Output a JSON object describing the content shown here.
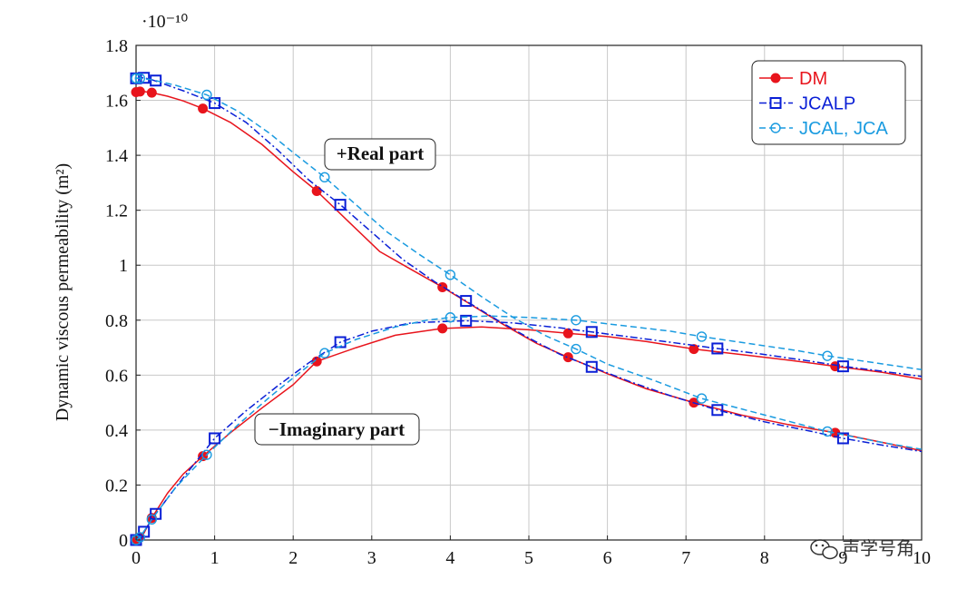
{
  "chart_data": {
    "type": "line",
    "xlim": [
      0,
      10
    ],
    "ylim": [
      0,
      1.8
    ],
    "x_ticks": [
      "0",
      "1",
      "2",
      "3",
      "4",
      "5",
      "6",
      "7",
      "8",
      "9",
      "10"
    ],
    "y_ticks": [
      "0",
      "0.2",
      "0.4",
      "0.6",
      "0.8",
      "1",
      "1.2",
      "1.4",
      "1.6",
      "1.8"
    ],
    "ylabel": "Dynamic viscous permeability (m²)",
    "y_multiplier": "·10⁻¹⁰",
    "grid": true,
    "legend_position": "top-right",
    "annotations": [
      "+Real part",
      "−Imaginary part"
    ],
    "series": [
      {
        "name": "DM",
        "color": "#e8141c",
        "line": "solid",
        "marker": "filled-circle",
        "real": {
          "x": [
            0,
            0.1,
            0.2,
            0.4,
            0.6,
            0.85,
            1.2,
            1.6,
            2.0,
            2.3,
            2.7,
            3.1,
            3.5,
            3.9,
            4.3,
            4.7,
            5.1,
            5.5,
            6.0,
            6.5,
            7.1,
            7.7,
            8.3,
            8.9,
            9.5,
            10
          ],
          "y": [
            1.63,
            1.632,
            1.628,
            1.615,
            1.598,
            1.57,
            1.52,
            1.44,
            1.34,
            1.27,
            1.16,
            1.05,
            0.985,
            0.92,
            0.85,
            0.78,
            0.715,
            0.665,
            0.605,
            0.55,
            0.5,
            0.455,
            0.42,
            0.39,
            0.355,
            0.325
          ],
          "markers_x": [
            0,
            0.05,
            0.2,
            0.85,
            2.3,
            3.9,
            5.5,
            7.1,
            8.9
          ],
          "markers_y": [
            1.63,
            1.632,
            1.628,
            1.57,
            1.27,
            0.92,
            0.665,
            0.5,
            0.39
          ]
        },
        "imag": {
          "x": [
            0,
            0.05,
            0.1,
            0.2,
            0.4,
            0.6,
            0.85,
            1.2,
            1.6,
            2.0,
            2.3,
            2.8,
            3.3,
            3.9,
            4.4,
            5.0,
            5.5,
            6.0,
            6.5,
            7.1,
            7.7,
            8.3,
            8.9,
            9.5,
            10
          ],
          "y": [
            0,
            0.01,
            0.025,
            0.08,
            0.17,
            0.24,
            0.305,
            0.39,
            0.48,
            0.565,
            0.65,
            0.7,
            0.745,
            0.77,
            0.775,
            0.765,
            0.752,
            0.74,
            0.722,
            0.695,
            0.675,
            0.655,
            0.632,
            0.61,
            0.585
          ],
          "markers_x": [
            0,
            0.05,
            0.2,
            0.85,
            2.3,
            3.9,
            5.5,
            7.1,
            8.9
          ],
          "markers_y": [
            0,
            0.01,
            0.08,
            0.305,
            0.65,
            0.77,
            0.752,
            0.695,
            0.632
          ]
        }
      },
      {
        "name": "JCALP",
        "color": "#0a1fd6",
        "line": "dashdot",
        "marker": "open-square",
        "real": {
          "x": [
            0,
            0.1,
            0.2,
            0.4,
            0.6,
            1.0,
            1.4,
            1.8,
            2.2,
            2.6,
            3.0,
            3.4,
            3.8,
            4.2,
            4.6,
            5.0,
            5.4,
            5.8,
            6.3,
            6.8,
            7.4,
            8.0,
            8.6,
            9.0,
            9.5,
            10
          ],
          "y": [
            1.68,
            1.682,
            1.675,
            1.655,
            1.635,
            1.59,
            1.52,
            1.42,
            1.31,
            1.22,
            1.12,
            1.02,
            0.94,
            0.87,
            0.8,
            0.735,
            0.675,
            0.63,
            0.575,
            0.525,
            0.473,
            0.43,
            0.395,
            0.37,
            0.345,
            0.322
          ],
          "markers_x": [
            0,
            0.1,
            0.25,
            1.0,
            2.6,
            4.2,
            5.8,
            7.4,
            9.0
          ],
          "markers_y": [
            1.68,
            1.682,
            1.672,
            1.59,
            1.22,
            0.87,
            0.63,
            0.473,
            0.37
          ]
        },
        "imag": {
          "x": [
            0,
            0.1,
            0.25,
            0.5,
            0.75,
            1.0,
            1.4,
            1.8,
            2.2,
            2.6,
            3.0,
            3.5,
            4.2,
            4.8,
            5.4,
            5.8,
            6.4,
            7.0,
            7.4,
            8.0,
            8.6,
            9.0,
            9.5,
            10
          ],
          "y": [
            0,
            0.03,
            0.095,
            0.19,
            0.28,
            0.37,
            0.47,
            0.56,
            0.645,
            0.72,
            0.76,
            0.79,
            0.798,
            0.79,
            0.772,
            0.757,
            0.735,
            0.712,
            0.697,
            0.675,
            0.65,
            0.632,
            0.614,
            0.595
          ],
          "markers_x": [
            0,
            0.1,
            0.25,
            1.0,
            2.6,
            4.2,
            5.8,
            7.4,
            9.0
          ],
          "markers_y": [
            0,
            0.03,
            0.095,
            0.37,
            0.72,
            0.798,
            0.757,
            0.697,
            0.632
          ]
        }
      },
      {
        "name": "JCAL, JCA",
        "color": "#1a9be0",
        "line": "dashed",
        "marker": "open-circle",
        "real": {
          "x": [
            0,
            0.05,
            0.2,
            0.5,
            0.9,
            1.3,
            1.7,
            2.0,
            2.4,
            2.8,
            3.2,
            3.6,
            4.0,
            4.4,
            4.8,
            5.2,
            5.6,
            6.0,
            6.6,
            7.2,
            7.8,
            8.4,
            8.8,
            9.4,
            10
          ],
          "y": [
            1.68,
            1.68,
            1.675,
            1.655,
            1.62,
            1.56,
            1.48,
            1.41,
            1.32,
            1.22,
            1.12,
            1.04,
            0.965,
            0.885,
            0.81,
            0.745,
            0.695,
            0.64,
            0.58,
            0.515,
            0.47,
            0.425,
            0.395,
            0.36,
            0.33
          ],
          "markers_x": [
            0,
            0.05,
            0.9,
            2.4,
            4.0,
            5.6,
            7.2,
            8.8
          ],
          "markers_y": [
            1.68,
            1.68,
            1.62,
            1.32,
            0.965,
            0.695,
            0.515,
            0.395
          ]
        },
        "imag": {
          "x": [
            0,
            0.05,
            0.2,
            0.5,
            0.9,
            1.3,
            1.7,
            2.0,
            2.4,
            2.8,
            3.3,
            3.7,
            4.0,
            4.5,
            5.0,
            5.6,
            6.2,
            6.8,
            7.2,
            7.8,
            8.4,
            8.8,
            9.4,
            10
          ],
          "y": [
            0,
            0.01,
            0.075,
            0.19,
            0.31,
            0.42,
            0.52,
            0.59,
            0.68,
            0.73,
            0.775,
            0.8,
            0.81,
            0.815,
            0.81,
            0.8,
            0.78,
            0.76,
            0.74,
            0.715,
            0.69,
            0.67,
            0.645,
            0.62
          ],
          "markers_x": [
            0,
            0.05,
            0.2,
            0.9,
            2.4,
            4.0,
            5.6,
            7.2,
            8.8
          ],
          "markers_y": [
            0,
            0.01,
            0.075,
            0.31,
            0.68,
            0.81,
            0.8,
            0.74,
            0.67
          ]
        }
      }
    ]
  },
  "watermark": {
    "text": "声学号角",
    "icon": "wechat-logo-icon"
  }
}
